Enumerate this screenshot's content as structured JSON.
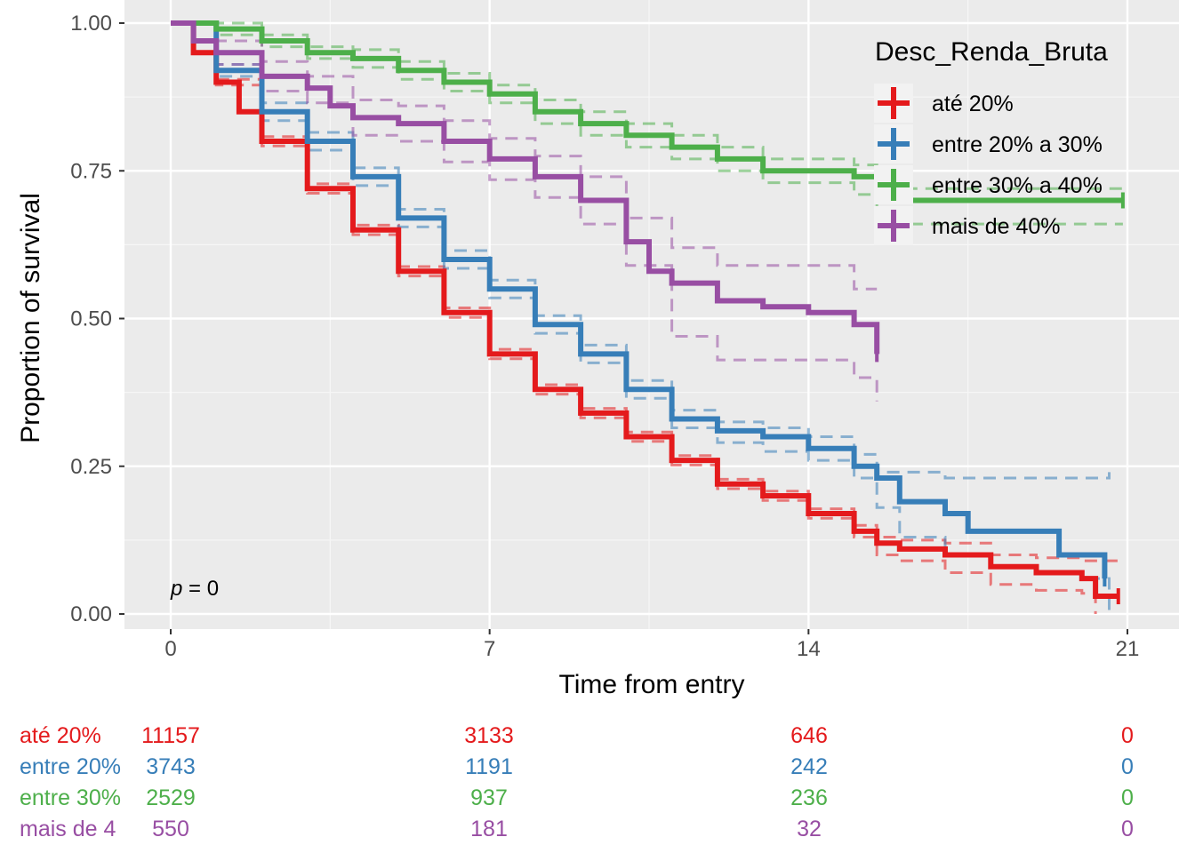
{
  "chart_data": {
    "type": "line",
    "subtype": "kaplan-meier survival curves with confidence bands and risk table",
    "xlabel": "Time from entry",
    "ylabel": "Proportion of survival",
    "xlim": [
      -1,
      22.5
    ],
    "ylim": [
      -0.0,
      1.0
    ],
    "x_ticks": [
      "0",
      "7",
      "14",
      "21"
    ],
    "x_tick_values": [
      0,
      7,
      14,
      21
    ],
    "y_ticks": [
      "0.00",
      "0.25",
      "0.50",
      "0.75",
      "1.00"
    ],
    "y_tick_values": [
      0,
      0.25,
      0.5,
      0.75,
      1.0
    ],
    "grid": true,
    "legend": {
      "title": "Desc_Renda_Bruta",
      "placement": "top-right inside"
    },
    "pvalue": {
      "prefix": "p",
      "text": " = 0"
    },
    "series": [
      {
        "name": "até 20%",
        "color": "#E41A1C",
        "points": [
          [
            0,
            1.0
          ],
          [
            0.5,
            0.95
          ],
          [
            1,
            0.9
          ],
          [
            1.5,
            0.85
          ],
          [
            2,
            0.8
          ],
          [
            3,
            0.72
          ],
          [
            4,
            0.65
          ],
          [
            5,
            0.58
          ],
          [
            6,
            0.51
          ],
          [
            7,
            0.44
          ],
          [
            8,
            0.38
          ],
          [
            9,
            0.34
          ],
          [
            10,
            0.3
          ],
          [
            11,
            0.26
          ],
          [
            12,
            0.22
          ],
          [
            13,
            0.2
          ],
          [
            14,
            0.17
          ],
          [
            15,
            0.14
          ],
          [
            15.5,
            0.12
          ],
          [
            16,
            0.11
          ],
          [
            17,
            0.1
          ],
          [
            18,
            0.08
          ],
          [
            19,
            0.07
          ],
          [
            20,
            0.06
          ],
          [
            20.3,
            0.03
          ],
          [
            20.8,
            0.03
          ]
        ],
        "upper": [
          [
            0,
            1.0
          ],
          [
            1,
            0.905
          ],
          [
            2,
            0.808
          ],
          [
            3,
            0.728
          ],
          [
            4,
            0.658
          ],
          [
            5,
            0.588
          ],
          [
            6,
            0.518
          ],
          [
            7,
            0.448
          ],
          [
            8,
            0.388
          ],
          [
            9,
            0.348
          ],
          [
            10,
            0.308
          ],
          [
            11,
            0.268
          ],
          [
            12,
            0.228
          ],
          [
            13,
            0.208
          ],
          [
            14,
            0.178
          ],
          [
            15,
            0.15
          ],
          [
            15.5,
            0.13
          ],
          [
            16,
            0.125
          ],
          [
            17,
            0.12
          ],
          [
            18,
            0.1
          ],
          [
            19,
            0.095
          ],
          [
            20,
            0.09
          ],
          [
            20.8,
            0.09
          ]
        ],
        "lower": [
          [
            0,
            1.0
          ],
          [
            1,
            0.895
          ],
          [
            2,
            0.792
          ],
          [
            3,
            0.712
          ],
          [
            4,
            0.642
          ],
          [
            5,
            0.572
          ],
          [
            6,
            0.502
          ],
          [
            7,
            0.432
          ],
          [
            8,
            0.372
          ],
          [
            9,
            0.332
          ],
          [
            10,
            0.292
          ],
          [
            11,
            0.252
          ],
          [
            12,
            0.212
          ],
          [
            13,
            0.192
          ],
          [
            14,
            0.162
          ],
          [
            15,
            0.13
          ],
          [
            15.5,
            0.1
          ],
          [
            16,
            0.09
          ],
          [
            17,
            0.07
          ],
          [
            18,
            0.05
          ],
          [
            19,
            0.04
          ],
          [
            20,
            0.035
          ],
          [
            20.3,
            0.0
          ]
        ]
      },
      {
        "name": "entre 20% a 30%",
        "color": "#377EB8",
        "points": [
          [
            0,
            1.0
          ],
          [
            1,
            0.92
          ],
          [
            2,
            0.85
          ],
          [
            3,
            0.8
          ],
          [
            4,
            0.74
          ],
          [
            5,
            0.67
          ],
          [
            6,
            0.6
          ],
          [
            7,
            0.55
          ],
          [
            8,
            0.49
          ],
          [
            9,
            0.44
          ],
          [
            10,
            0.38
          ],
          [
            11,
            0.33
          ],
          [
            12,
            0.31
          ],
          [
            13,
            0.3
          ],
          [
            14,
            0.28
          ],
          [
            15,
            0.25
          ],
          [
            15.5,
            0.23
          ],
          [
            16,
            0.19
          ],
          [
            17,
            0.17
          ],
          [
            17.5,
            0.14
          ],
          [
            19,
            0.14
          ],
          [
            19.5,
            0.1
          ],
          [
            20.5,
            0.1
          ],
          [
            20.5,
            0.06
          ]
        ],
        "upper": [
          [
            0,
            1.0
          ],
          [
            1,
            0.93
          ],
          [
            2,
            0.865
          ],
          [
            3,
            0.815
          ],
          [
            4,
            0.755
          ],
          [
            5,
            0.685
          ],
          [
            6,
            0.615
          ],
          [
            7,
            0.565
          ],
          [
            8,
            0.505
          ],
          [
            9,
            0.455
          ],
          [
            10,
            0.395
          ],
          [
            11,
            0.345
          ],
          [
            12,
            0.325
          ],
          [
            13,
            0.315
          ],
          [
            14,
            0.3
          ],
          [
            15,
            0.27
          ],
          [
            15.5,
            0.24
          ],
          [
            16,
            0.24
          ],
          [
            17,
            0.23
          ],
          [
            18,
            0.23
          ],
          [
            19,
            0.23
          ],
          [
            20,
            0.23
          ],
          [
            20.6,
            0.24
          ]
        ],
        "lower": [
          [
            0,
            1.0
          ],
          [
            1,
            0.91
          ],
          [
            2,
            0.835
          ],
          [
            3,
            0.785
          ],
          [
            4,
            0.725
          ],
          [
            5,
            0.655
          ],
          [
            6,
            0.585
          ],
          [
            7,
            0.535
          ],
          [
            8,
            0.475
          ],
          [
            9,
            0.425
          ],
          [
            10,
            0.365
          ],
          [
            11,
            0.315
          ],
          [
            12,
            0.29
          ],
          [
            13,
            0.275
          ],
          [
            14,
            0.26
          ],
          [
            15,
            0.23
          ],
          [
            15.5,
            0.18
          ],
          [
            16,
            0.13
          ],
          [
            17,
            0.1
          ],
          [
            18,
            0.08
          ],
          [
            19,
            0.07
          ],
          [
            20,
            0.06
          ],
          [
            20.6,
            0.0
          ]
        ]
      },
      {
        "name": "entre 30% a 40%",
        "color": "#4DAF4A",
        "points": [
          [
            0,
            1.0
          ],
          [
            1,
            0.99
          ],
          [
            2,
            0.97
          ],
          [
            3,
            0.95
          ],
          [
            4,
            0.94
          ],
          [
            5,
            0.92
          ],
          [
            6,
            0.9
          ],
          [
            7,
            0.88
          ],
          [
            8,
            0.85
          ],
          [
            9,
            0.83
          ],
          [
            10,
            0.81
          ],
          [
            11,
            0.79
          ],
          [
            12,
            0.77
          ],
          [
            13,
            0.75
          ],
          [
            14,
            0.75
          ],
          [
            15,
            0.74
          ],
          [
            15.5,
            0.7
          ],
          [
            20.9,
            0.7
          ]
        ],
        "upper": [
          [
            0,
            1.0
          ],
          [
            1,
            1.0
          ],
          [
            2,
            0.98
          ],
          [
            3,
            0.96
          ],
          [
            4,
            0.955
          ],
          [
            5,
            0.935
          ],
          [
            6,
            0.915
          ],
          [
            7,
            0.895
          ],
          [
            8,
            0.87
          ],
          [
            9,
            0.85
          ],
          [
            10,
            0.83
          ],
          [
            11,
            0.81
          ],
          [
            12,
            0.79
          ],
          [
            13,
            0.77
          ],
          [
            14,
            0.77
          ],
          [
            15,
            0.76
          ],
          [
            15.5,
            0.72
          ],
          [
            20.9,
            0.72
          ]
        ],
        "lower": [
          [
            0,
            1.0
          ],
          [
            1,
            0.98
          ],
          [
            2,
            0.96
          ],
          [
            3,
            0.94
          ],
          [
            4,
            0.925
          ],
          [
            5,
            0.905
          ],
          [
            6,
            0.885
          ],
          [
            7,
            0.865
          ],
          [
            8,
            0.83
          ],
          [
            9,
            0.81
          ],
          [
            10,
            0.79
          ],
          [
            11,
            0.77
          ],
          [
            12,
            0.75
          ],
          [
            13,
            0.73
          ],
          [
            14,
            0.73
          ],
          [
            15,
            0.71
          ],
          [
            15.5,
            0.66
          ],
          [
            20.9,
            0.66
          ]
        ]
      },
      {
        "name": "mais de 40%",
        "color": "#984EA3",
        "points": [
          [
            0,
            1.0
          ],
          [
            0.5,
            0.97
          ],
          [
            1,
            0.95
          ],
          [
            2,
            0.91
          ],
          [
            3,
            0.89
          ],
          [
            3.5,
            0.86
          ],
          [
            4,
            0.84
          ],
          [
            5,
            0.83
          ],
          [
            6,
            0.8
          ],
          [
            7,
            0.77
          ],
          [
            8,
            0.74
          ],
          [
            9,
            0.7
          ],
          [
            10,
            0.63
          ],
          [
            10.5,
            0.58
          ],
          [
            11,
            0.56
          ],
          [
            12,
            0.53
          ],
          [
            13,
            0.52
          ],
          [
            14,
            0.51
          ],
          [
            15,
            0.49
          ],
          [
            15.5,
            0.44
          ]
        ],
        "upper": [
          [
            0,
            1.0
          ],
          [
            1,
            0.97
          ],
          [
            2,
            0.935
          ],
          [
            3,
            0.91
          ],
          [
            4,
            0.87
          ],
          [
            5,
            0.86
          ],
          [
            6,
            0.835
          ],
          [
            7,
            0.805
          ],
          [
            8,
            0.775
          ],
          [
            9,
            0.74
          ],
          [
            10,
            0.67
          ],
          [
            11,
            0.62
          ],
          [
            12,
            0.59
          ],
          [
            13,
            0.59
          ],
          [
            14,
            0.59
          ],
          [
            15,
            0.55
          ],
          [
            15.5,
            0.55
          ]
        ],
        "lower": [
          [
            0,
            1.0
          ],
          [
            1,
            0.93
          ],
          [
            2,
            0.885
          ],
          [
            3,
            0.865
          ],
          [
            4,
            0.81
          ],
          [
            5,
            0.8
          ],
          [
            6,
            0.765
          ],
          [
            7,
            0.735
          ],
          [
            8,
            0.705
          ],
          [
            9,
            0.66
          ],
          [
            10,
            0.59
          ],
          [
            11,
            0.47
          ],
          [
            12,
            0.43
          ],
          [
            13,
            0.43
          ],
          [
            14,
            0.43
          ],
          [
            15,
            0.4
          ],
          [
            15.5,
            0.36
          ]
        ]
      }
    ],
    "risk_table": {
      "time_points": [
        0,
        7,
        14,
        21
      ],
      "rows": [
        {
          "label": "até 20%",
          "color": "#E41A1C",
          "values": [
            "11157",
            "3133",
            "646",
            "0"
          ]
        },
        {
          "label": "entre 20%",
          "color": "#377EB8",
          "values": [
            "3743",
            "1191",
            "242",
            "0"
          ]
        },
        {
          "label": "entre 30%",
          "color": "#4DAF4A",
          "values": [
            "2529",
            "937",
            "236",
            "0"
          ]
        },
        {
          "label": "mais de 4",
          "color": "#984EA3",
          "values": [
            "550",
            "181",
            "32",
            "0"
          ]
        }
      ]
    }
  }
}
